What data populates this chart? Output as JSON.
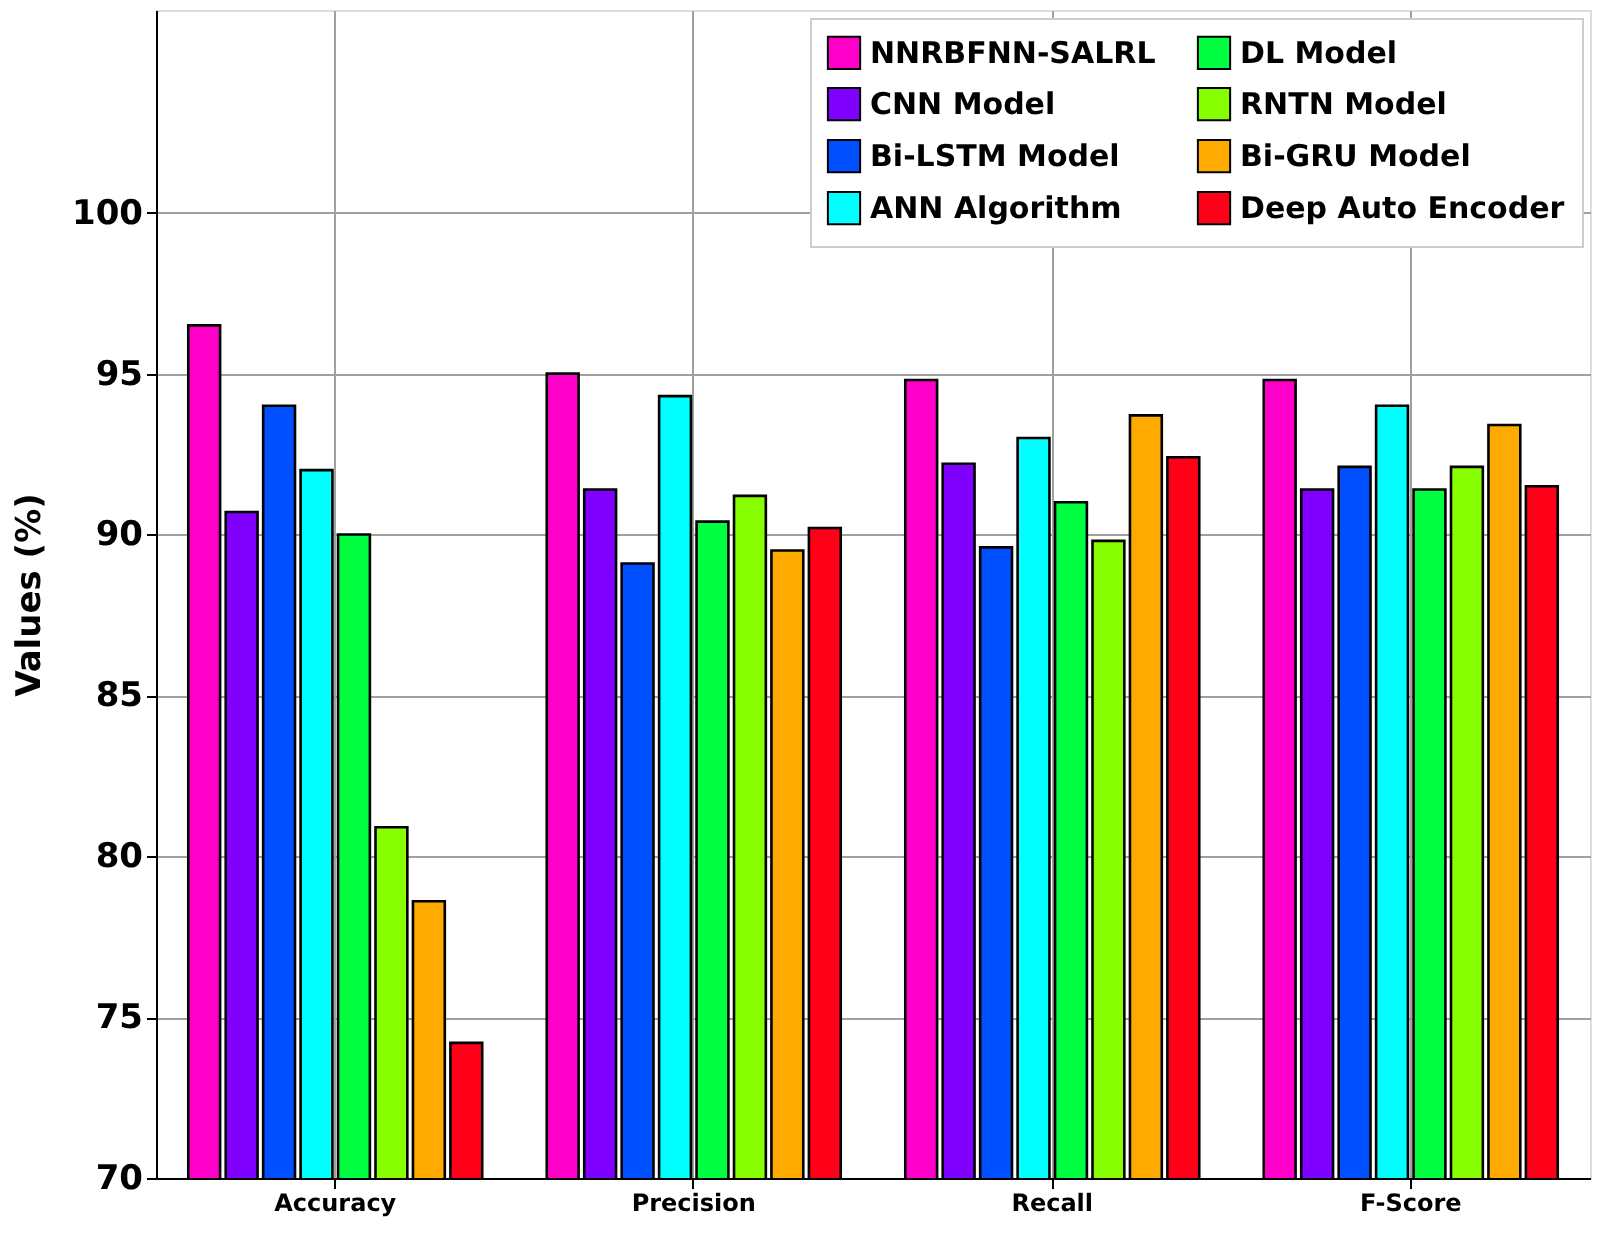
{
  "chart_data": {
    "type": "bar",
    "ylabel": "Values (%)",
    "categories": [
      "Accuracy",
      "Precision",
      "Recall",
      "F-Score"
    ],
    "series": [
      {
        "name": "NNRBFNN-SALRL",
        "color": "#ff00c8",
        "values": [
          96.5,
          95.0,
          94.8,
          94.8
        ]
      },
      {
        "name": "CNN Model",
        "color": "#8000ff",
        "values": [
          90.7,
          91.4,
          92.2,
          91.4
        ]
      },
      {
        "name": "Bi-LSTM Model",
        "color": "#0050ff",
        "values": [
          94.0,
          89.1,
          89.6,
          92.1
        ]
      },
      {
        "name": "ANN Algorithm",
        "color": "#00ffff",
        "values": [
          92.0,
          94.3,
          93.0,
          94.0
        ]
      },
      {
        "name": "DL Model",
        "color": "#00ff40",
        "values": [
          90.0,
          90.4,
          91.0,
          91.4
        ]
      },
      {
        "name": "RNTN Model",
        "color": "#88ff00",
        "values": [
          80.9,
          91.2,
          89.8,
          92.1
        ]
      },
      {
        "name": "Bi-GRU Model",
        "color": "#ffaa00",
        "values": [
          78.6,
          89.5,
          93.7,
          93.4
        ]
      },
      {
        "name": "Deep Auto Encoder",
        "color": "#ff0018",
        "values": [
          74.2,
          90.2,
          92.4,
          91.5
        ]
      }
    ],
    "ylim": [
      70,
      106.3
    ],
    "yticks": [
      70,
      75,
      80,
      85,
      90,
      95,
      100
    ],
    "grid": true,
    "legend": "top right"
  }
}
